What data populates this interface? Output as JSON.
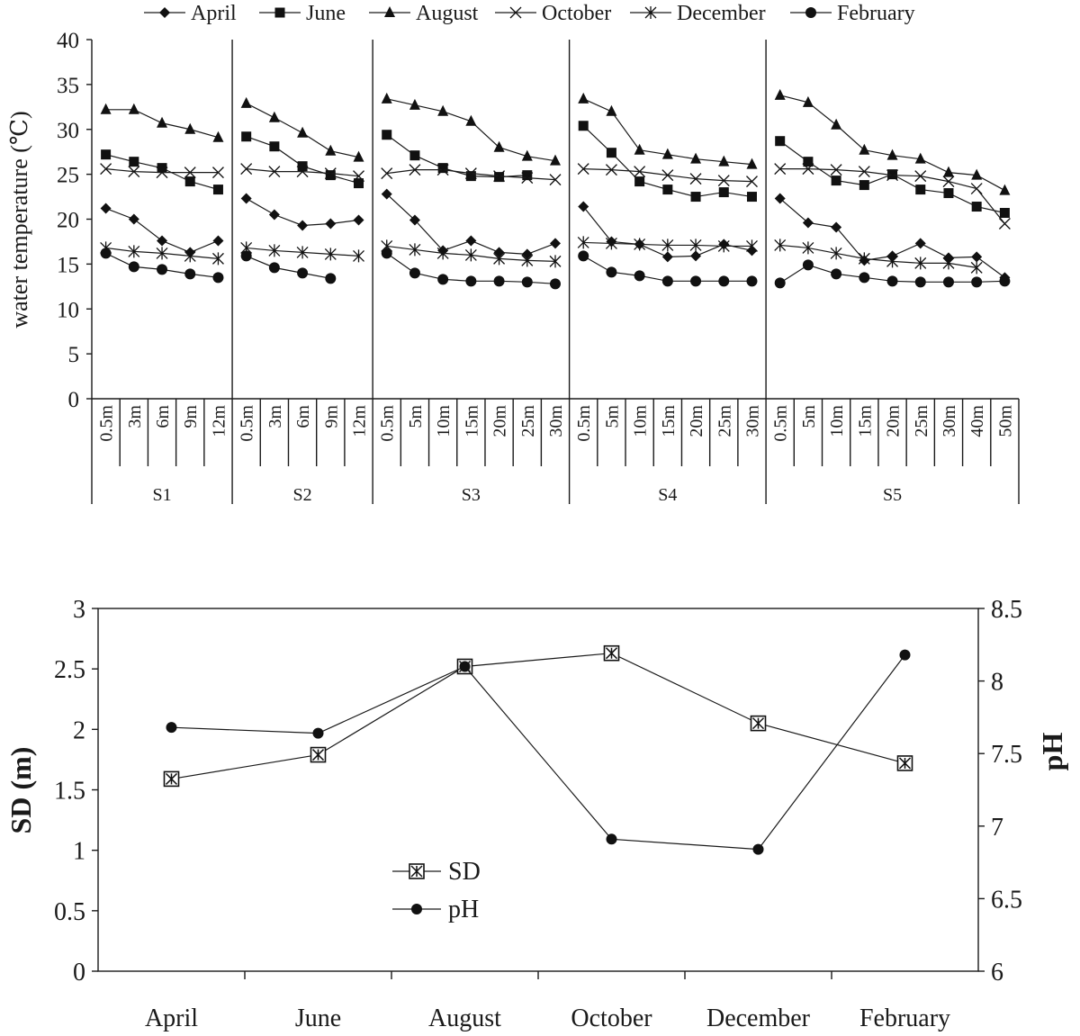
{
  "chart_data": [
    {
      "type": "line",
      "ylabel": "water temperature (℃)",
      "ylim": [
        0,
        40
      ],
      "yticks": [
        "0",
        "5",
        "10",
        "15",
        "20",
        "25",
        "30",
        "35",
        "40"
      ],
      "legend": [
        {
          "name": "April",
          "marker": "diamond"
        },
        {
          "name": "June",
          "marker": "square"
        },
        {
          "name": "August",
          "marker": "triangle"
        },
        {
          "name": "October",
          "marker": "x"
        },
        {
          "name": "December",
          "marker": "asterisk"
        },
        {
          "name": "February",
          "marker": "circle"
        }
      ],
      "legend_position": "top",
      "groups": [
        {
          "name": "S1",
          "depths": [
            "0.5m",
            "3m",
            "6m",
            "9m",
            "12m"
          ],
          "series": {
            "April": [
              21.2,
              20.0,
              17.6,
              16.3,
              17.6
            ],
            "June": [
              27.2,
              26.4,
              25.7,
              24.2,
              23.3
            ],
            "August": [
              32.2,
              32.2,
              30.7,
              30.0,
              29.1
            ],
            "October": [
              25.6,
              25.3,
              25.2,
              25.2,
              25.2
            ],
            "December": [
              16.8,
              16.4,
              16.2,
              15.9,
              15.6
            ],
            "February": [
              16.2,
              14.7,
              14.4,
              13.9,
              13.5
            ]
          }
        },
        {
          "name": "S2",
          "depths": [
            "0.5m",
            "3m",
            "6m",
            "9m",
            "12m"
          ],
          "series": {
            "April": [
              22.3,
              20.5,
              19.3,
              19.5,
              19.9
            ],
            "June": [
              29.2,
              28.1,
              25.9,
              24.9,
              24.0
            ],
            "August": [
              32.9,
              31.3,
              29.6,
              27.6,
              26.9
            ],
            "October": [
              25.6,
              25.3,
              25.3,
              25.1,
              24.8
            ],
            "December": [
              16.8,
              16.5,
              16.3,
              16.1,
              15.9
            ],
            "February": [
              15.9,
              14.6,
              14.0,
              13.4,
              null
            ]
          }
        },
        {
          "name": "S3",
          "depths": [
            "0.5m",
            "5m",
            "10m",
            "15m",
            "20m",
            "25m",
            "30m"
          ],
          "series": {
            "April": [
              22.8,
              19.9,
              16.5,
              17.6,
              16.3,
              16.1,
              17.3
            ],
            "June": [
              29.4,
              27.1,
              25.7,
              24.8,
              24.7,
              24.9,
              null
            ],
            "August": [
              33.4,
              32.7,
              32.0,
              30.9,
              28.0,
              27.0,
              26.5
            ],
            "October": [
              25.1,
              25.5,
              25.5,
              25.1,
              24.8,
              24.6,
              24.4
            ],
            "December": [
              17.0,
              16.6,
              16.2,
              16.0,
              15.6,
              15.4,
              15.3
            ],
            "February": [
              16.2,
              14.0,
              13.3,
              13.1,
              13.1,
              13.0,
              12.8
            ]
          }
        },
        {
          "name": "S4",
          "depths": [
            "0.5m",
            "5m",
            "10m",
            "15m",
            "20m",
            "25m",
            "30m"
          ],
          "series": {
            "April": [
              21.4,
              17.5,
              17.2,
              15.8,
              15.9,
              17.2,
              16.5
            ],
            "June": [
              30.4,
              27.4,
              24.2,
              23.3,
              22.5,
              23.0,
              22.5
            ],
            "August": [
              33.4,
              32.0,
              27.7,
              27.2,
              26.7,
              26.4,
              26.1
            ],
            "October": [
              25.6,
              25.5,
              25.3,
              24.9,
              24.5,
              24.3,
              24.2
            ],
            "December": [
              17.4,
              17.3,
              17.2,
              17.1,
              17.1,
              17.0,
              17.0
            ],
            "February": [
              15.9,
              14.1,
              13.7,
              13.1,
              13.1,
              13.1,
              13.1
            ]
          }
        },
        {
          "name": "S5",
          "depths": [
            "0.5m",
            "5m",
            "10m",
            "15m",
            "20m",
            "25m",
            "30m",
            "40m",
            "50m"
          ],
          "series": {
            "April": [
              22.3,
              19.6,
              19.1,
              15.4,
              15.9,
              17.3,
              15.7,
              15.8,
              13.5
            ],
            "June": [
              28.7,
              26.4,
              24.3,
              23.8,
              25.0,
              23.3,
              22.9,
              21.4,
              20.7
            ],
            "August": [
              33.8,
              33.0,
              30.5,
              27.7,
              27.1,
              26.7,
              25.2,
              24.9,
              23.2
            ],
            "October": [
              25.6,
              25.6,
              25.5,
              25.3,
              24.9,
              24.8,
              24.2,
              23.4,
              19.5
            ],
            "December": [
              17.1,
              16.8,
              16.2,
              15.6,
              15.3,
              15.1,
              15.1,
              14.6,
              null
            ],
            "February": [
              12.9,
              14.9,
              13.9,
              13.5,
              13.1,
              13.0,
              13.0,
              13.0,
              13.1
            ]
          }
        }
      ]
    },
    {
      "type": "line",
      "categories": [
        "April",
        "June",
        "August",
        "October",
        "December",
        "February"
      ],
      "ylabel": "SD (m)",
      "y2label": "pH",
      "ylim": [
        0,
        3
      ],
      "y2lim": [
        6,
        8.5
      ],
      "yticks": [
        "0",
        "0.5",
        "1",
        "1.5",
        "2",
        "2.5",
        "3"
      ],
      "y2ticks": [
        "6",
        "6.5",
        "7",
        "7.5",
        "8",
        "8.5"
      ],
      "legend_position": "center-left",
      "series": [
        {
          "name": "SD",
          "axis": "left",
          "marker": "boxed-x",
          "values": [
            1.59,
            1.79,
            2.52,
            2.63,
            2.05,
            1.72
          ]
        },
        {
          "name": "pH",
          "axis": "right",
          "marker": "circle",
          "values": [
            7.68,
            7.64,
            8.1,
            6.91,
            6.84,
            8.18
          ]
        }
      ]
    }
  ]
}
